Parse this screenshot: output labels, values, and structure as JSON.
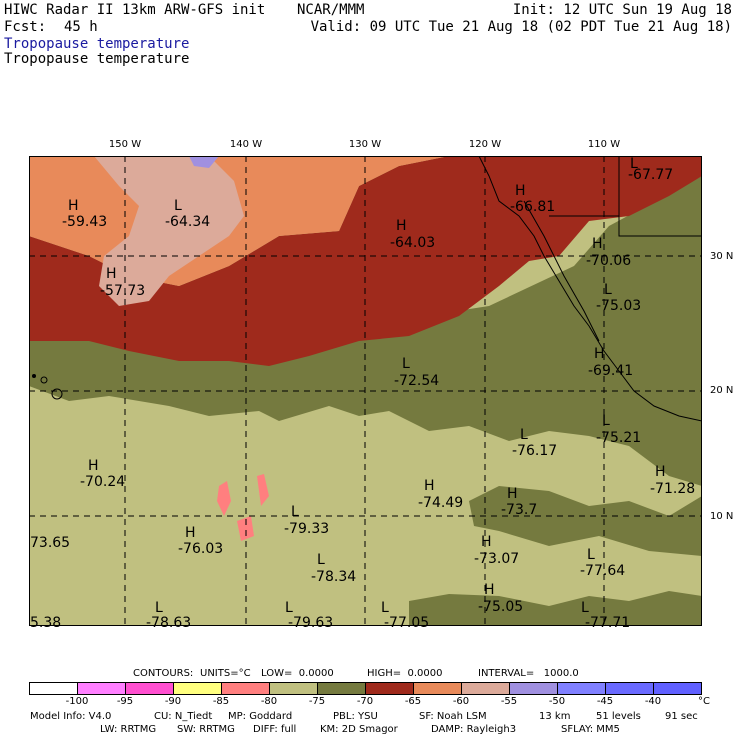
{
  "header": {
    "model": "HIWC Radar II 13km ARW-GFS init",
    "org": "NCAR/MMM",
    "init": "Init: 12 UTC Sun 19 Aug 18",
    "fcst_label": "Fcst:",
    "fcst_value": "45 h",
    "valid": "Valid: 09 UTC Tue 21 Aug 18 (02 PDT Tue 21 Aug 18)",
    "field1": "Tropopause temperature",
    "field2": "Tropopause temperature"
  },
  "map": {
    "lon_labels": [
      "150 W",
      "140 W",
      "130 W",
      "120 W",
      "110 W"
    ],
    "lat_labels": [
      "30 N",
      "20 N",
      "10 N"
    ],
    "markers": [
      {
        "letter": "H",
        "value": "-59.43"
      },
      {
        "letter": "L",
        "value": "-64.34"
      },
      {
        "letter": "H",
        "value": "-57.73"
      },
      {
        "letter": "H",
        "value": "-64.03"
      },
      {
        "letter": "H",
        "value": "-66.81"
      },
      {
        "letter": "L",
        "value": "-67.77"
      },
      {
        "letter": "H",
        "value": "-70.06"
      },
      {
        "letter": "L",
        "value": "-75.03"
      },
      {
        "letter": "H",
        "value": "-69.41"
      },
      {
        "letter": "L",
        "value": "-72.54"
      },
      {
        "letter": "L",
        "value": "-76.17"
      },
      {
        "letter": "L",
        "value": "-75.21"
      },
      {
        "letter": "H",
        "value": "-70.24"
      },
      {
        "letter": "H",
        "value": "-74.49"
      },
      {
        "letter": "H",
        "value": "-73.7"
      },
      {
        "letter": "H",
        "value": "-71.28"
      },
      {
        "letter": "L",
        "value": "-79.33"
      },
      {
        "letter": "H",
        "value": "-76.03"
      },
      {
        "letter": "",
        "value": "73.65"
      },
      {
        "letter": "L",
        "value": "-78.34"
      },
      {
        "letter": "H",
        "value": "-73.07"
      },
      {
        "letter": "L",
        "value": "-77.64"
      },
      {
        "letter": "H",
        "value": "-75.05"
      },
      {
        "letter": "L",
        "value": "-78.63"
      },
      {
        "letter": "L",
        "value": "-79.63"
      },
      {
        "letter": "L",
        "value": "-77.05"
      },
      {
        "letter": "L",
        "value": "-77.71"
      },
      {
        "letter": "",
        "value": "5.38"
      }
    ]
  },
  "contours": {
    "label": "CONTOURS:",
    "units": "UNITS=°C",
    "low": "LOW=  0.0000",
    "high": "HIGH=  0.0000",
    "interval": "INTERVAL=   1000.0"
  },
  "legend": {
    "colors": [
      "#ffffff",
      "#ff7fff",
      "#ff4fd0",
      "#ffff7f",
      "#ff7f7f",
      "#c0c080",
      "#757a3f",
      "#9f2a1c",
      "#e88a5a",
      "#dcaa9a",
      "#a090e0",
      "#8080ff",
      "#6a6aff",
      "#6060ff"
    ],
    "ticks": [
      "-100",
      "-95",
      "-90",
      "-85",
      "-80",
      "-75",
      "-70",
      "-65",
      "-60",
      "-55",
      "-50",
      "-45",
      "-40"
    ],
    "unit": "°C"
  },
  "footer": {
    "line1": [
      "Model Info: V4.0",
      "CU: N_Tiedt",
      "MP: Goddard",
      "PBL: YSU",
      "SF: Noah LSM",
      "13 km",
      "51 levels",
      "91 sec"
    ],
    "line2": [
      "LW: RRTMG",
      "SW: RRTMG",
      "DIFF: full",
      "KM: 2D Smagor",
      "DAMP: Rayleigh3",
      "SFLAY: MM5"
    ]
  }
}
